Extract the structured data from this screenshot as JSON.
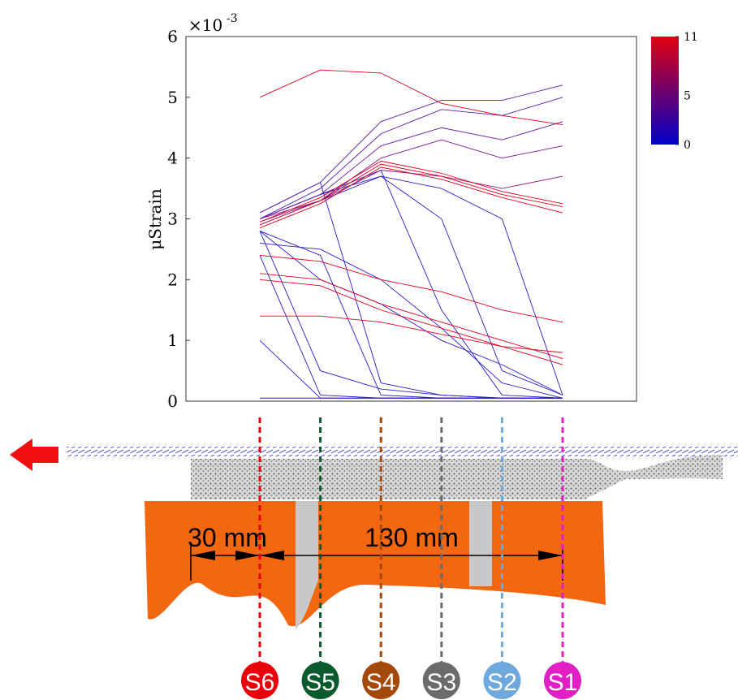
{
  "chart_data": {
    "type": "line",
    "y_label": "μStrain",
    "y_multiplier": "×10",
    "y_multiplier_exp": "-3",
    "categories": [
      "S6",
      "S5",
      "S4",
      "S3",
      "S2",
      "S1"
    ],
    "category_colors": [
      "#e8000b",
      "#0b5a2e",
      "#a5490a",
      "#6b6b6b",
      "#6fa8dc",
      "#e01fc4"
    ],
    "ylim": [
      0,
      6
    ],
    "yticks": [
      0,
      1,
      2,
      3,
      4,
      5,
      6
    ],
    "colorbar": {
      "lim": [
        0,
        11
      ],
      "ticks": [
        0,
        5,
        11
      ],
      "colors": [
        "#0000c8",
        "#e00010"
      ]
    },
    "annotations": [
      "30 mm",
      "130 mm"
    ],
    "series": [
      {
        "color": "#2a1cc4",
        "values": [
          0.05,
          0.05,
          0.05,
          0.05,
          0.05,
          0.05
        ]
      },
      {
        "color": "#2a1cc4",
        "values": [
          1.0,
          0.05,
          0.05,
          0.05,
          0.05,
          0.05
        ]
      },
      {
        "color": "#2a1cc4",
        "values": [
          2.4,
          0.1,
          0.05,
          0.05,
          0.05,
          0.05
        ]
      },
      {
        "color": "#2a1cc4",
        "values": [
          2.8,
          0.5,
          0.2,
          0.1,
          0.05,
          0.05
        ]
      },
      {
        "color": "#2a1cc4",
        "values": [
          2.8,
          2.4,
          0.1,
          0.05,
          0.05,
          0.05
        ]
      },
      {
        "color": "#2a1cc4",
        "values": [
          3.1,
          3.6,
          0.3,
          0.1,
          0.05,
          0.05
        ]
      },
      {
        "color": "#2a1cc4",
        "values": [
          2.6,
          2.5,
          2.0,
          1.2,
          0.3,
          0.05
        ]
      },
      {
        "color": "#2a1cc4",
        "values": [
          2.8,
          2.0,
          1.6,
          1.0,
          0.6,
          0.1
        ]
      },
      {
        "color": "#2a1cc4",
        "values": [
          3.0,
          3.4,
          3.8,
          1.5,
          0.1,
          0.05
        ]
      },
      {
        "color": "#2a1cc4",
        "values": [
          2.9,
          3.3,
          3.7,
          3.0,
          0.5,
          0.1
        ]
      },
      {
        "color": "#2a1cc4",
        "values": [
          3.0,
          3.4,
          3.7,
          3.5,
          3.0,
          0.1
        ]
      },
      {
        "color": "#5a1aa8",
        "values": [
          3.1,
          3.6,
          4.6,
          4.95,
          4.95,
          5.2
        ]
      },
      {
        "color": "#5a1aa8",
        "values": [
          3.0,
          3.5,
          4.4,
          4.8,
          4.7,
          5.0
        ]
      },
      {
        "color": "#6a18a0",
        "values": [
          3.0,
          3.4,
          4.2,
          4.5,
          4.3,
          4.6
        ]
      },
      {
        "color": "#7a1690",
        "values": [
          2.95,
          3.3,
          4.0,
          4.3,
          4.0,
          4.2
        ]
      },
      {
        "color": "#901480",
        "values": [
          3.0,
          3.3,
          3.8,
          3.7,
          3.5,
          3.7
        ]
      },
      {
        "color": "#e0001a",
        "values": [
          2.4,
          2.3,
          2.0,
          1.8,
          1.5,
          1.3
        ]
      },
      {
        "color": "#e0001a",
        "values": [
          2.1,
          2.0,
          1.6,
          1.3,
          1.0,
          0.7
        ]
      },
      {
        "color": "#e0001a",
        "values": [
          2.0,
          1.9,
          1.5,
          1.2,
          0.9,
          0.6
        ]
      },
      {
        "color": "#e0001a",
        "values": [
          1.4,
          1.4,
          1.3,
          1.1,
          0.9,
          0.8
        ]
      },
      {
        "color": "#e0001a",
        "values": [
          5.0,
          5.45,
          5.4,
          4.9,
          4.7,
          4.55
        ]
      },
      {
        "color": "#e0001a",
        "values": [
          2.85,
          3.25,
          3.85,
          3.65,
          3.35,
          3.1
        ]
      },
      {
        "color": "#e0001a",
        "values": [
          2.9,
          3.3,
          3.9,
          3.7,
          3.4,
          3.2
        ]
      },
      {
        "color": "#e0001a",
        "values": [
          2.95,
          3.35,
          3.95,
          3.75,
          3.45,
          3.25
        ]
      }
    ]
  }
}
